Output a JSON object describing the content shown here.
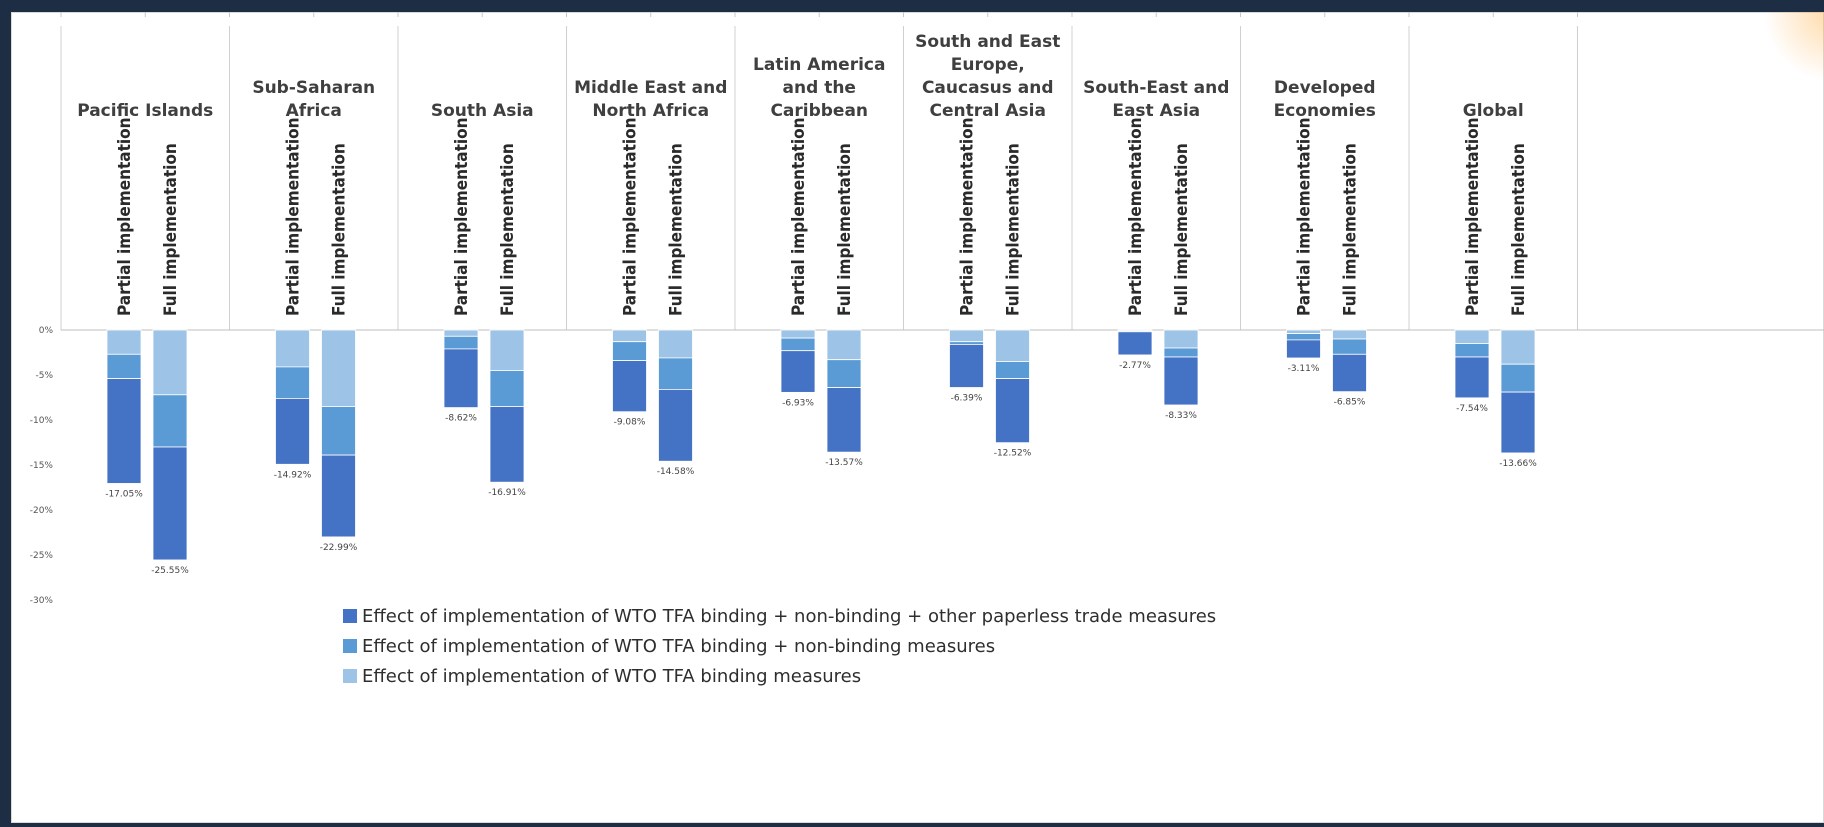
{
  "chart_data": {
    "type": "bar",
    "stacked": true,
    "title": "",
    "xlabel": "",
    "ylabel": "",
    "ylim": [
      -30,
      0
    ],
    "yticks": [
      0,
      -5,
      -10,
      -15,
      -20,
      -25,
      -30
    ],
    "ytick_labels": [
      "0%",
      "-5%",
      "-10%",
      "-15%",
      "-20%",
      "-25%",
      "-30%"
    ],
    "grid": false,
    "legend_position": "bottom",
    "bar_labels": [
      "Partial implementation",
      "Full implementation"
    ],
    "series": [
      {
        "name": "Effect of implementation of WTO TFA binding + non-binding + other paperless trade measures",
        "color": "#4472c4"
      },
      {
        "name": "Effect of implementation of WTO TFA binding + non-binding measures",
        "color": "#5b9bd5"
      },
      {
        "name": "Effect of implementation of WTO TFA binding measures",
        "color": "#9dc3e6"
      }
    ],
    "legend_order": [
      0,
      1,
      2
    ],
    "categories": [
      {
        "region": "Pacific Islands",
        "bars": [
          {
            "label": "Partial implementation",
            "binding": -2.7,
            "binding_nonbinding": -5.4,
            "total": -17.05,
            "total_label": "-17.05%"
          },
          {
            "label": "Full implementation",
            "binding": -7.2,
            "binding_nonbinding": -13.0,
            "total": -25.55,
            "total_label": "-25.55%"
          }
        ]
      },
      {
        "region": "Sub-Saharan Africa",
        "bars": [
          {
            "label": "Partial implementation",
            "binding": -4.1,
            "binding_nonbinding": -7.6,
            "total": -14.92,
            "total_label": "-14.92%"
          },
          {
            "label": "Full implementation",
            "binding": -8.5,
            "binding_nonbinding": -13.9,
            "total": -22.99,
            "total_label": "-22.99%"
          }
        ]
      },
      {
        "region": "South Asia",
        "bars": [
          {
            "label": "Partial implementation",
            "binding": -0.7,
            "binding_nonbinding": -2.1,
            "total": -8.62,
            "total_label": "-8.62%"
          },
          {
            "label": "Full implementation",
            "binding": -4.5,
            "binding_nonbinding": -8.5,
            "total": -16.91,
            "total_label": "-16.91%"
          }
        ]
      },
      {
        "region": "Middle East and North Africa",
        "bars": [
          {
            "label": "Partial implementation",
            "binding": -1.3,
            "binding_nonbinding": -3.4,
            "total": -9.08,
            "total_label": "-9.08%"
          },
          {
            "label": "Full implementation",
            "binding": -3.1,
            "binding_nonbinding": -6.6,
            "total": -14.58,
            "total_label": "-14.58%"
          }
        ]
      },
      {
        "region": "Latin America and the Caribbean",
        "bars": [
          {
            "label": "Partial implementation",
            "binding": -0.9,
            "binding_nonbinding": -2.3,
            "total": -6.93,
            "total_label": "-6.93%"
          },
          {
            "label": "Full implementation",
            "binding": -3.3,
            "binding_nonbinding": -6.4,
            "total": -13.57,
            "total_label": "-13.57%"
          }
        ]
      },
      {
        "region": "South and East Europe, Caucasus and Central Asia",
        "bars": [
          {
            "label": "Partial implementation",
            "binding": -1.3,
            "binding_nonbinding": -1.6,
            "total": -6.39,
            "total_label": "-6.39%"
          },
          {
            "label": "Full implementation",
            "binding": -3.5,
            "binding_nonbinding": -5.4,
            "total": -12.52,
            "total_label": "-12.52%"
          }
        ]
      },
      {
        "region": "South-East and East Asia",
        "bars": [
          {
            "label": "Partial implementation",
            "binding": -0.1,
            "binding_nonbinding": -0.2,
            "total": -2.77,
            "total_label": "-2.77%"
          },
          {
            "label": "Full implementation",
            "binding": -2.0,
            "binding_nonbinding": -3.0,
            "total": -8.33,
            "total_label": "-8.33%"
          }
        ]
      },
      {
        "region": "Developed Economies",
        "bars": [
          {
            "label": "Partial implementation",
            "binding": -0.4,
            "binding_nonbinding": -1.1,
            "total": -3.11,
            "total_label": "-3.11%"
          },
          {
            "label": "Full implementation",
            "binding": -1.0,
            "binding_nonbinding": -2.7,
            "total": -6.85,
            "total_label": "-6.85%"
          }
        ]
      },
      {
        "region": "Global",
        "bars": [
          {
            "label": "Partial implementation",
            "binding": -1.5,
            "binding_nonbinding": -3.0,
            "total": -7.54,
            "total_label": "-7.54%"
          },
          {
            "label": "Full implementation",
            "binding": -3.8,
            "binding_nonbinding": -6.9,
            "total": -13.66,
            "total_label": "-13.66%"
          }
        ]
      }
    ]
  }
}
